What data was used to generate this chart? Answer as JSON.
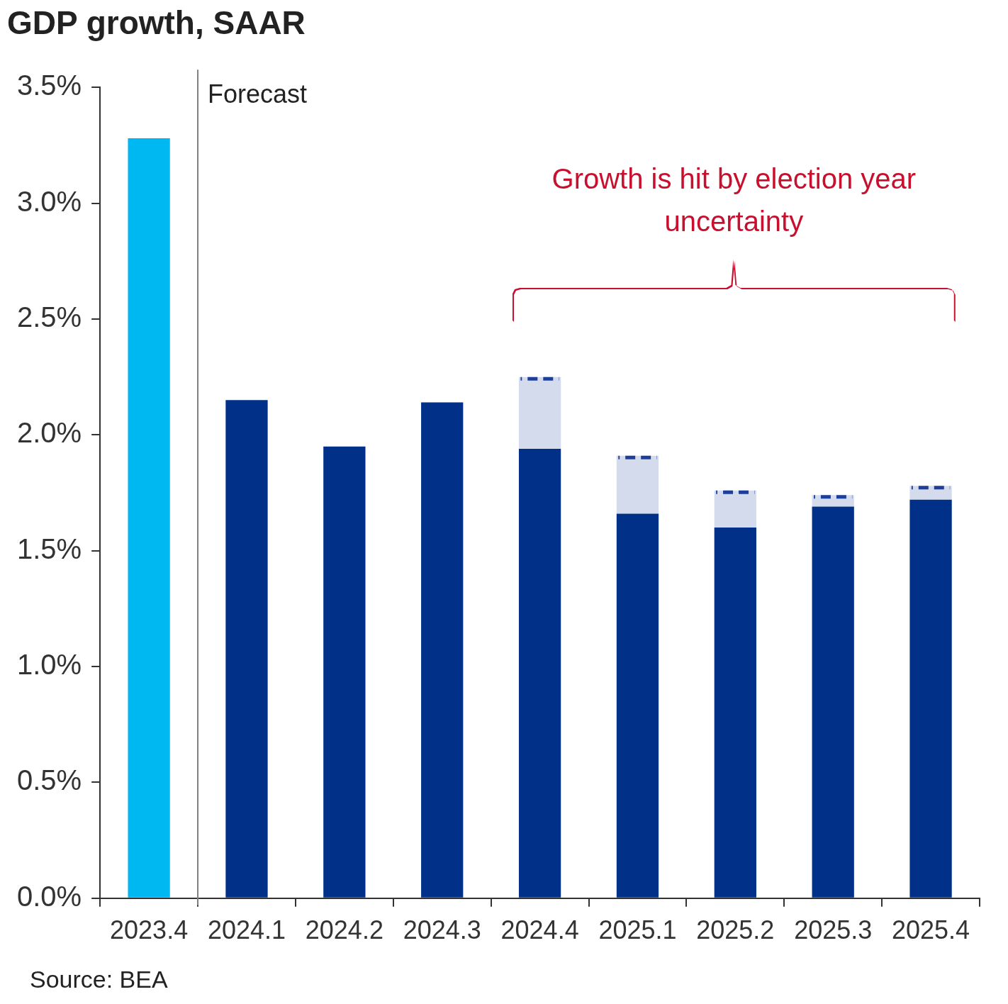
{
  "chart_data": {
    "type": "bar",
    "title": "GDP growth, SAAR",
    "categories": [
      "2023.4",
      "2024.1",
      "2024.2",
      "2024.3",
      "2024.4",
      "2025.1",
      "2025.2",
      "2025.3",
      "2025.4"
    ],
    "stacked": true,
    "series": [
      {
        "colors": [
          "#00b8f1",
          "#003087",
          "#003087",
          "#003087",
          "#003087",
          "#003087",
          "#003087",
          "#003087",
          "#003087"
        ],
        "values": [
          3.28,
          2.15,
          1.95,
          2.14,
          1.94,
          1.66,
          1.6,
          1.69,
          1.72
        ]
      },
      {
        "color": "#1d3f9a",
        "line_style": "dashed",
        "values": [
          null,
          null,
          null,
          null,
          0.31,
          0.25,
          0.16,
          0.05,
          0.06
        ]
      }
    ],
    "ylim": [
      0,
      3.5
    ],
    "yticks": [
      {
        "value": 0,
        "label": "0.0%"
      },
      {
        "value": 0.5,
        "label": "0.5%"
      },
      {
        "value": 1,
        "label": "1.0%"
      },
      {
        "value": 1.5,
        "label": "1.5%"
      },
      {
        "value": 2,
        "label": "2.0%"
      },
      {
        "value": 2.5,
        "label": "2.5%"
      },
      {
        "value": 3,
        "label": "3.0%"
      },
      {
        "value": 3.5,
        "label": "3.5%"
      }
    ],
    "grid": false,
    "legend": false,
    "annotations": [
      "Forecast",
      "Growth is hit by election year uncertainty",
      "Source: BEA"
    ]
  }
}
